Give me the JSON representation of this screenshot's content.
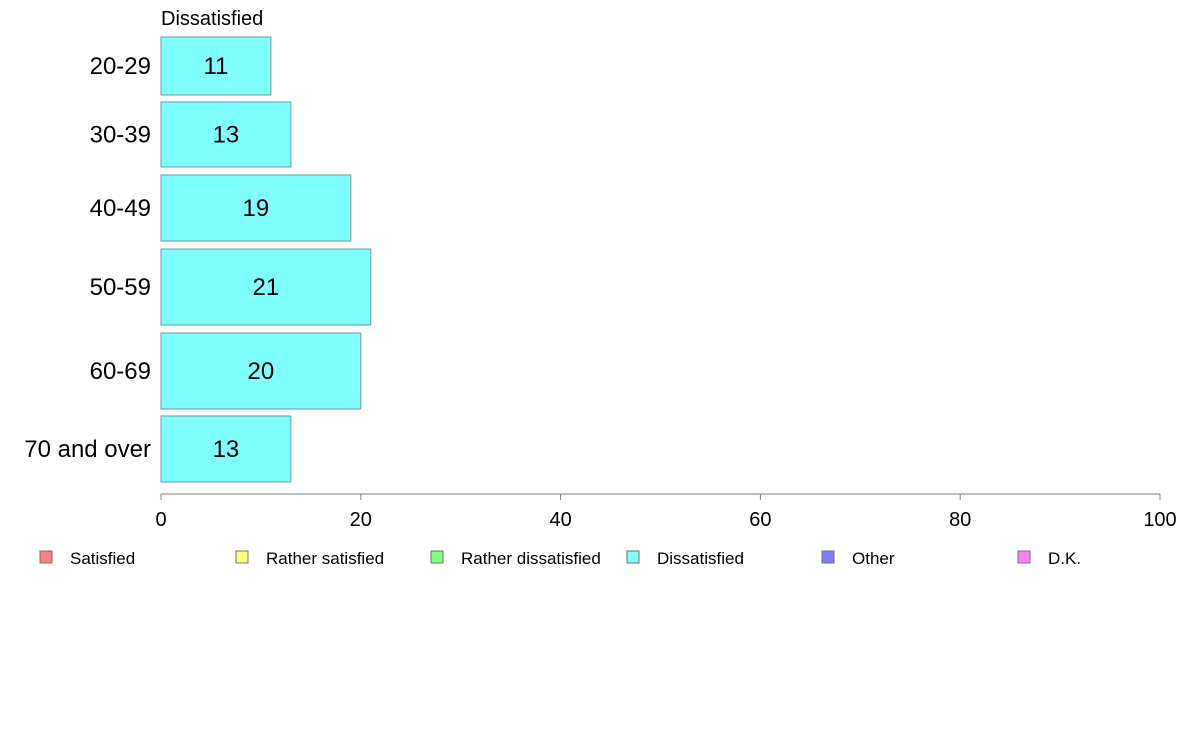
{
  "chart_data": {
    "type": "bar",
    "orientation": "horizontal",
    "title": "Dissatisfied",
    "categories": [
      "20-29",
      "30-39",
      "40-49",
      "50-59",
      "60-69",
      "70 and over"
    ],
    "series": [
      {
        "name": "Dissatisfied",
        "values": [
          11,
          13,
          19,
          21,
          20,
          13
        ],
        "color": "#80ffff"
      }
    ],
    "xlim": [
      0,
      100
    ],
    "xticks": [
      0,
      20,
      40,
      60,
      80,
      100
    ],
    "grid": false,
    "legend_position": "bottom",
    "legend": [
      {
        "label": "Satisfied",
        "color": "#ff8080"
      },
      {
        "label": "Rather satisfied",
        "color": "#ffff80"
      },
      {
        "label": "Rather dissatisfied",
        "color": "#80ff80"
      },
      {
        "label": "Dissatisfied",
        "color": "#80ffff"
      },
      {
        "label": "Other",
        "color": "#8080ff"
      },
      {
        "label": "D.K.",
        "color": "#ff80ff"
      }
    ]
  }
}
